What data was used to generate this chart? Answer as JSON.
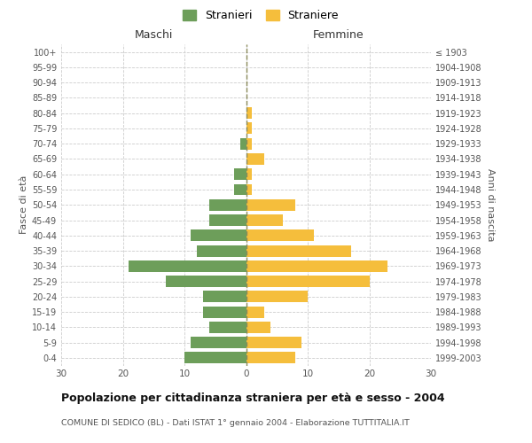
{
  "age_groups": [
    "100+",
    "95-99",
    "90-94",
    "85-89",
    "80-84",
    "75-79",
    "70-74",
    "65-69",
    "60-64",
    "55-59",
    "50-54",
    "45-49",
    "40-44",
    "35-39",
    "30-34",
    "25-29",
    "20-24",
    "15-19",
    "10-14",
    "5-9",
    "0-4"
  ],
  "birth_years": [
    "≤ 1903",
    "1904-1908",
    "1909-1913",
    "1914-1918",
    "1919-1923",
    "1924-1928",
    "1929-1933",
    "1934-1938",
    "1939-1943",
    "1944-1948",
    "1949-1953",
    "1954-1958",
    "1959-1963",
    "1964-1968",
    "1969-1973",
    "1974-1978",
    "1979-1983",
    "1984-1988",
    "1989-1993",
    "1994-1998",
    "1999-2003"
  ],
  "males": [
    0,
    0,
    0,
    0,
    0,
    0,
    1,
    0,
    2,
    2,
    6,
    6,
    9,
    8,
    19,
    13,
    7,
    7,
    6,
    9,
    10
  ],
  "females": [
    0,
    0,
    0,
    0,
    1,
    1,
    1,
    3,
    1,
    1,
    8,
    6,
    11,
    17,
    23,
    20,
    10,
    3,
    4,
    9,
    8
  ],
  "male_color": "#6d9e5a",
  "female_color": "#f5be3c",
  "grid_color": "#cccccc",
  "center_line_color": "#8a8a5a",
  "title": "Popolazione per cittadinanza straniera per età e sesso - 2004",
  "subtitle": "COMUNE DI SEDICO (BL) - Dati ISTAT 1° gennaio 2004 - Elaborazione TUTTITALIA.IT",
  "xlabel_left": "Maschi",
  "xlabel_right": "Femmine",
  "ylabel_left": "Fasce di età",
  "ylabel_right": "Anni di nascita",
  "legend_male": "Stranieri",
  "legend_female": "Straniere",
  "xlim": 30,
  "background_color": "#ffffff",
  "bar_height": 0.75
}
